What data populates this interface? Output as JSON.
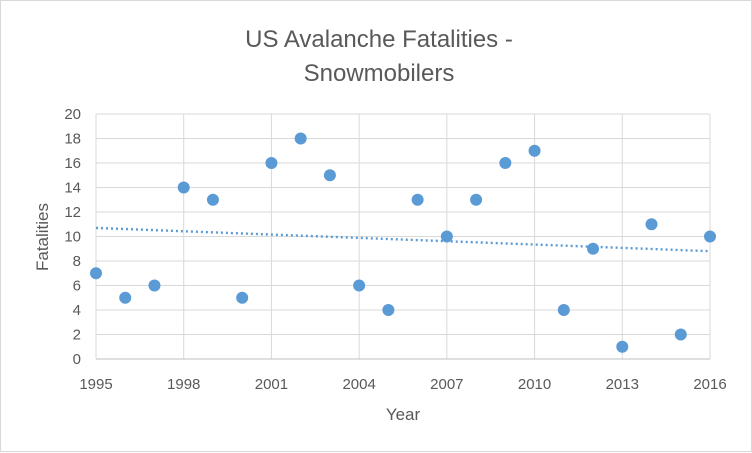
{
  "chart_data": {
    "type": "scatter",
    "title_lines": [
      "US Avalanche Fatalities -",
      "Snowmobilers"
    ],
    "xlabel": "Year",
    "ylabel": "Fatalities",
    "xlim": [
      1995,
      2016
    ],
    "ylim": [
      0,
      20
    ],
    "x_ticks": [
      1995,
      1998,
      2001,
      2004,
      2007,
      2010,
      2013,
      2016
    ],
    "y_ticks": [
      0,
      2,
      4,
      6,
      8,
      10,
      12,
      14,
      16,
      18,
      20
    ],
    "grid": true,
    "legend": "none",
    "series": [
      {
        "color": "#5b9bd5",
        "x": [
          1995,
          1996,
          1997,
          1998,
          1999,
          2000,
          2001,
          2002,
          2003,
          2004,
          2005,
          2006,
          2007,
          2008,
          2009,
          2010,
          2011,
          2012,
          2013,
          2014,
          2015,
          2016
        ],
        "y": [
          7,
          5,
          6,
          14,
          13,
          5,
          16,
          18,
          15,
          6,
          4,
          13,
          10,
          13,
          16,
          17,
          4,
          9,
          1,
          11,
          2,
          10
        ]
      }
    ],
    "trendline": {
      "type": "linear",
      "style": "dotted",
      "color": "#5b9bd5",
      "start": [
        1995,
        10.7
      ],
      "end": [
        2016,
        8.8
      ]
    }
  }
}
